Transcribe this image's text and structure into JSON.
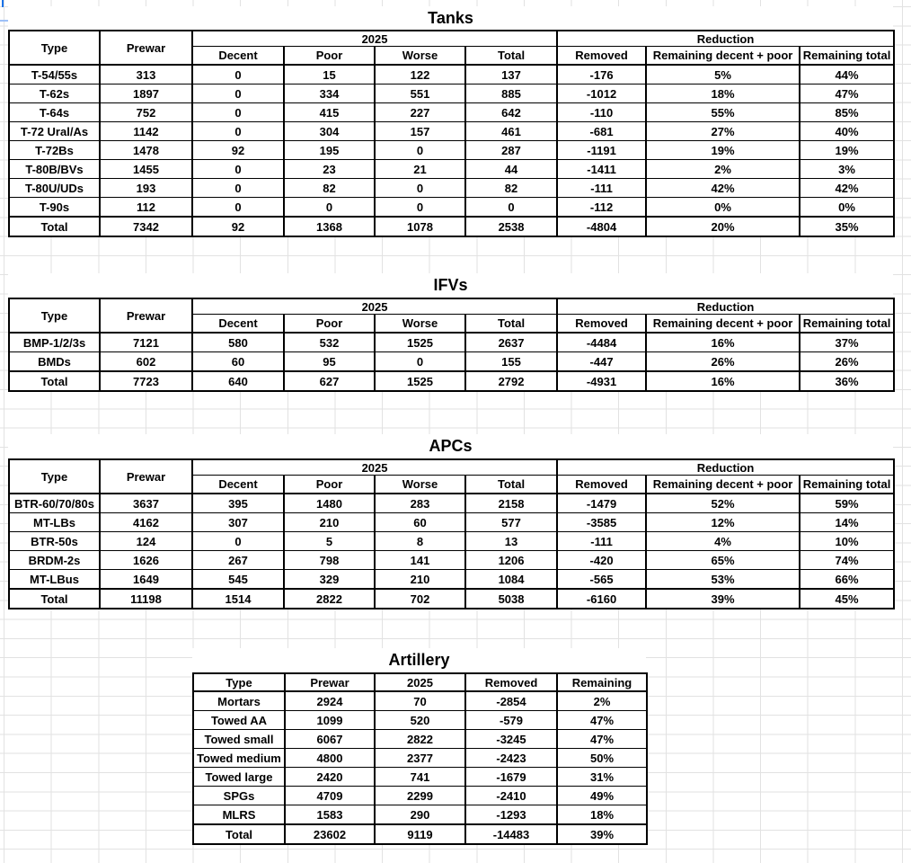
{
  "sheet": {
    "grid_color": "#e2e2e2",
    "selection_color": "#1a73e8",
    "table_border_color": "#000000"
  },
  "big_table_headers": {
    "type": "Type",
    "prewar": "Prewar",
    "y2025": "2025",
    "reduction": "Reduction",
    "decent": "Decent",
    "poor": "Poor",
    "worse": "Worse",
    "total": "Total",
    "removed": "Removed",
    "remaining_decent_poor": "Remaining decent + poor",
    "remaining_total": "Remaining total"
  },
  "tables": {
    "tanks": {
      "title": "Tanks",
      "rows": [
        [
          "T-54/55s",
          "313",
          "0",
          "15",
          "122",
          "137",
          "-176",
          "5%",
          "44%"
        ],
        [
          "T-62s",
          "1897",
          "0",
          "334",
          "551",
          "885",
          "-1012",
          "18%",
          "47%"
        ],
        [
          "T-64s",
          "752",
          "0",
          "415",
          "227",
          "642",
          "-110",
          "55%",
          "85%"
        ],
        [
          "T-72 Ural/As",
          "1142",
          "0",
          "304",
          "157",
          "461",
          "-681",
          "27%",
          "40%"
        ],
        [
          "T-72Bs",
          "1478",
          "92",
          "195",
          "0",
          "287",
          "-1191",
          "19%",
          "19%"
        ],
        [
          "T-80B/BVs",
          "1455",
          "0",
          "23",
          "21",
          "44",
          "-1411",
          "2%",
          "3%"
        ],
        [
          "T-80U/UDs",
          "193",
          "0",
          "82",
          "0",
          "82",
          "-111",
          "42%",
          "42%"
        ],
        [
          "T-90s",
          "112",
          "0",
          "0",
          "0",
          "0",
          "-112",
          "0%",
          "0%"
        ]
      ],
      "total_row": [
        "Total",
        "7342",
        "92",
        "1368",
        "1078",
        "2538",
        "-4804",
        "20%",
        "35%"
      ]
    },
    "ifvs": {
      "title": "IFVs",
      "rows": [
        [
          "BMP-1/2/3s",
          "7121",
          "580",
          "532",
          "1525",
          "2637",
          "-4484",
          "16%",
          "37%"
        ],
        [
          "BMDs",
          "602",
          "60",
          "95",
          "0",
          "155",
          "-447",
          "26%",
          "26%"
        ]
      ],
      "total_row": [
        "Total",
        "7723",
        "640",
        "627",
        "1525",
        "2792",
        "-4931",
        "16%",
        "36%"
      ]
    },
    "apcs": {
      "title": "APCs",
      "rows": [
        [
          "BTR-60/70/80s",
          "3637",
          "395",
          "1480",
          "283",
          "2158",
          "-1479",
          "52%",
          "59%"
        ],
        [
          "MT-LBs",
          "4162",
          "307",
          "210",
          "60",
          "577",
          "-3585",
          "12%",
          "14%"
        ],
        [
          "BTR-50s",
          "124",
          "0",
          "5",
          "8",
          "13",
          "-111",
          "4%",
          "10%"
        ],
        [
          "BRDM-2s",
          "1626",
          "267",
          "798",
          "141",
          "1206",
          "-420",
          "65%",
          "74%"
        ],
        [
          "MT-LBus",
          "1649",
          "545",
          "329",
          "210",
          "1084",
          "-565",
          "53%",
          "66%"
        ]
      ],
      "total_row": [
        "Total",
        "11198",
        "1514",
        "2822",
        "702",
        "5038",
        "-6160",
        "39%",
        "45%"
      ]
    },
    "artillery": {
      "title": "Artillery",
      "headers": {
        "type": "Type",
        "prewar": "Prewar",
        "y2025": "2025",
        "removed": "Removed",
        "remaining": "Remaining"
      },
      "rows": [
        [
          "Mortars",
          "2924",
          "70",
          "-2854",
          "2%"
        ],
        [
          "Towed AA",
          "1099",
          "520",
          "-579",
          "47%"
        ],
        [
          "Towed small",
          "6067",
          "2822",
          "-3245",
          "47%"
        ],
        [
          "Towed medium",
          "4800",
          "2377",
          "-2423",
          "50%"
        ],
        [
          "Towed large",
          "2420",
          "741",
          "-1679",
          "31%"
        ],
        [
          "SPGs",
          "4709",
          "2299",
          "-2410",
          "49%"
        ],
        [
          "MLRS",
          "1583",
          "290",
          "-1293",
          "18%"
        ]
      ],
      "total_row": [
        "Total",
        "23602",
        "9119",
        "-14483",
        "39%"
      ]
    }
  }
}
